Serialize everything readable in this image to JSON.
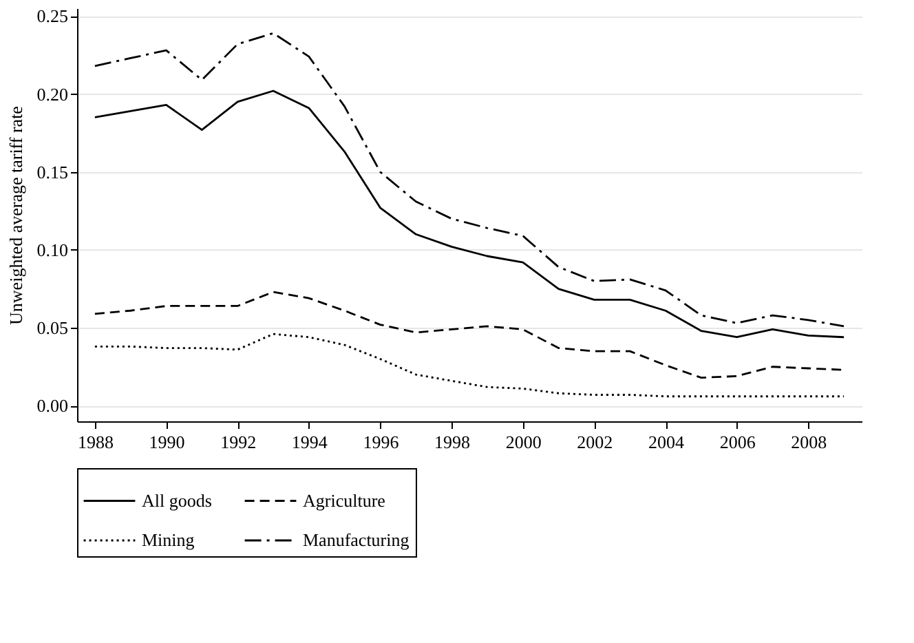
{
  "chart_data": {
    "type": "line",
    "ylabel": "Unweighted average tariff rate",
    "x": [
      1988,
      1989,
      1990,
      1991,
      1992,
      1993,
      1994,
      1995,
      1996,
      1997,
      1998,
      1999,
      2000,
      2001,
      2002,
      2003,
      2004,
      2005,
      2006,
      2007,
      2008,
      2009
    ],
    "series": [
      {
        "name": "All goods",
        "color": "#000000",
        "line_style": "solid",
        "values": [
          0.185,
          0.189,
          0.193,
          0.177,
          0.195,
          0.202,
          0.191,
          0.163,
          0.127,
          0.11,
          0.102,
          0.096,
          0.092,
          0.075,
          0.068,
          0.068,
          0.061,
          0.048,
          0.044,
          0.049,
          0.045,
          0.044
        ]
      },
      {
        "name": "Agriculture",
        "color": "#000000",
        "line_style": "dashed",
        "values": [
          0.059,
          0.061,
          0.064,
          0.064,
          0.064,
          0.073,
          0.069,
          0.061,
          0.052,
          0.047,
          0.049,
          0.051,
          0.049,
          0.037,
          0.035,
          0.035,
          0.026,
          0.018,
          0.019,
          0.025,
          0.024,
          0.023
        ]
      },
      {
        "name": "Mining",
        "color": "#000000",
        "line_style": "dotted",
        "values": [
          0.038,
          0.038,
          0.037,
          0.037,
          0.036,
          0.046,
          0.044,
          0.039,
          0.03,
          0.02,
          0.016,
          0.012,
          0.011,
          0.008,
          0.007,
          0.007,
          0.006,
          0.006,
          0.006,
          0.006,
          0.006,
          0.006
        ]
      },
      {
        "name": "Manufacturing",
        "color": "#000000",
        "line_style": "dashdot",
        "values": [
          0.218,
          0.223,
          0.228,
          0.209,
          0.232,
          0.239,
          0.224,
          0.192,
          0.15,
          0.131,
          0.12,
          0.114,
          0.109,
          0.089,
          0.08,
          0.081,
          0.074,
          0.058,
          0.053,
          0.058,
          0.055,
          0.051
        ]
      }
    ],
    "xlim": [
      1987.5,
      2009.5
    ],
    "xticks": [
      1988,
      1990,
      1992,
      1994,
      1996,
      1998,
      2000,
      2002,
      2004,
      2006,
      2008
    ],
    "ylim": [
      -0.01,
      0.255
    ],
    "yticks": [
      {
        "value": 0,
        "label": "0.00"
      },
      {
        "value": 0.05,
        "label": "0.05"
      },
      {
        "value": 0.1,
        "label": "0.10"
      },
      {
        "value": 0.15,
        "label": "0.15"
      },
      {
        "value": 0.2,
        "label": "0.20"
      },
      {
        "value": 0.25,
        "label": "0.25"
      }
    ],
    "grid": "y",
    "legend": "bottom"
  }
}
